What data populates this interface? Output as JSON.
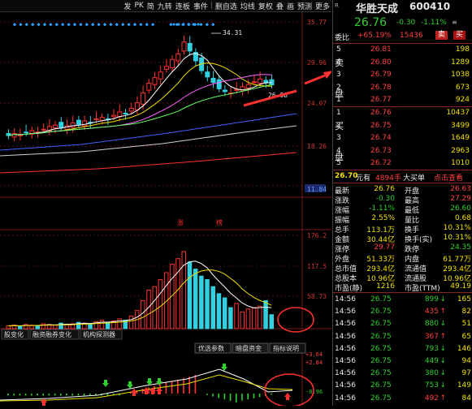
{
  "toolbar": {
    "items": [
      "发",
      "PK",
      "简",
      "九转",
      "连板",
      "事件",
      "|",
      "删自选",
      "均线",
      "复权",
      "叠",
      "画",
      "预测",
      "更多"
    ]
  },
  "price_axis": [
    "35.77",
    "29.96",
    "24.07",
    "18.26",
    "11.84"
  ],
  "kline_annotations": {
    "high": "34.31",
    "current": "26.98",
    "zhang": "涨",
    "bang": "榜"
  },
  "volume_axis": [
    "176.2",
    "117.5",
    "58.73"
  ],
  "info_tabs": [
    "股变化",
    "融资融券变化",
    "机构探测器"
  ],
  "indicator_tabs": [
    "优选参数",
    "暗盘资金",
    "指标说明"
  ],
  "indicator_axis": [
    "+3.64",
    "+2.84",
    "-0.96"
  ],
  "stock": {
    "name": "华胜天成",
    "code": "600410",
    "price": "26.76",
    "change": "-0.30",
    "pct": "-1.11%",
    "webi_label": "委比",
    "webi": "+65.19%",
    "webi_val": "15436",
    "sell_btn": "卖",
    "buy_btn": "买"
  },
  "sell_side_label": [
    "卖",
    "盘"
  ],
  "sell_orders": [
    {
      "n": "5",
      "p": "26.81",
      "v": "198"
    },
    {
      "n": "4",
      "p": "26.80",
      "v": "1289"
    },
    {
      "n": "3",
      "p": "26.79",
      "v": "1038"
    },
    {
      "n": "2",
      "p": "26.78",
      "v": "673"
    },
    {
      "n": "1",
      "p": "26.77",
      "v": "924"
    }
  ],
  "buy_side_label": [
    "买",
    "盘"
  ],
  "buy_orders": [
    {
      "n": "1",
      "p": "26.76",
      "v": "10437"
    },
    {
      "n": "2",
      "p": "26.75",
      "v": "3499"
    },
    {
      "n": "3",
      "p": "26.74",
      "v": "1649"
    },
    {
      "n": "4",
      "p": "26.73",
      "v": "2963"
    },
    {
      "n": "5",
      "p": "26.72",
      "v": "1010"
    }
  ],
  "big_order": {
    "price": "26.70",
    "price_unit": "元有",
    "vol": "4894手",
    "label": "大买单",
    "action": "点击查看"
  },
  "stats": [
    {
      "l": "最新",
      "v": "26.76",
      "l2": "开盘",
      "v2": "26.63"
    },
    {
      "l": "涨跌",
      "v": "-0.30",
      "l2": "最高",
      "v2": "27.29"
    },
    {
      "l": "涨幅",
      "v": "-1.11%",
      "l2": "最低",
      "v2": "26.60"
    },
    {
      "l": "振幅",
      "v": "2.55%",
      "l2": "量比",
      "v2": "0.68"
    },
    {
      "l": "总手",
      "v": "113.1万",
      "l2": "换手",
      "v2": "10.31%"
    },
    {
      "l": "金额",
      "v": "30.44亿",
      "l2": "换手(实)",
      "v2": "10.31%"
    },
    {
      "l": "涨停",
      "v": "29.77",
      "l2": "跌停",
      "v2": "24.35"
    },
    {
      "l": "外盘",
      "v": "51.33万",
      "l2": "内盘",
      "v2": "61.77万"
    },
    {
      "l": "总市值",
      "v": "293.4亿",
      "l2": "流通值",
      "v2": "293.4亿"
    },
    {
      "l": "总股本",
      "v": "10.96亿",
      "l2": "流通股",
      "v2": "10.96亿"
    },
    {
      "l": "市盈(静)",
      "v": "1216",
      "l2": "市盈(TTM)",
      "v2": "49.19"
    }
  ],
  "trades": [
    {
      "t": "14:56",
      "p": "26.75",
      "v": "899",
      "d": "down",
      "x": "165"
    },
    {
      "t": "14:56",
      "p": "26.75",
      "v": "435",
      "d": "up",
      "x": "82"
    },
    {
      "t": "14:56",
      "p": "26.75",
      "v": "880",
      "d": "down",
      "x": "51"
    },
    {
      "t": "14:56",
      "p": "26.75",
      "v": "367",
      "d": "up",
      "x": "65"
    },
    {
      "t": "14:56",
      "p": "26.75",
      "v": "793",
      "d": "down",
      "x": "146"
    },
    {
      "t": "14:56",
      "p": "26.75",
      "v": "449",
      "d": "down",
      "x": "94"
    },
    {
      "t": "14:56",
      "p": "26.75",
      "v": "380",
      "d": "down",
      "x": "97"
    },
    {
      "t": "14:56",
      "p": "26.75",
      "v": "753",
      "d": "down",
      "x": "149"
    },
    {
      "t": "14:56",
      "p": "26.75",
      "v": "492",
      "d": "up",
      "x": "84"
    }
  ],
  "colors": {
    "up": "#ff3030",
    "down": "#30d030",
    "accent": "#c02020",
    "ma_white": "#ffffff",
    "ma_yellow": "#f0e000",
    "ma_pink": "#ff60ff",
    "ma_green": "#60ff60"
  }
}
